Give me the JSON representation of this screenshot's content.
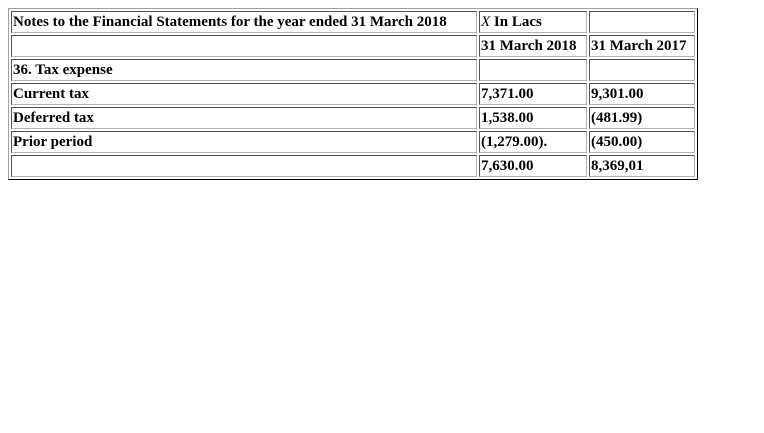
{
  "table": {
    "title": "Notes to the Financial Statements for the year ended 31 March 2018",
    "unit_symbol": "X",
    "unit_label": "In Lacs",
    "col_2018": "31 March 2018",
    "col_2017": "31 March 2017",
    "section": "36. Tax expense",
    "rows": [
      {
        "label": "Current tax",
        "v2018": "7,371.00",
        "v2017": "9,301.00"
      },
      {
        "label": "Deferred tax",
        "v2018": "1,538.00",
        "v2017": "(481.99)"
      },
      {
        "label": "Prior period",
        "v2018": "(1,279.00).",
        "v2017": "(450.00)"
      }
    ],
    "total_2018": "7,630.00",
    "total_2017": "8,369,01"
  }
}
